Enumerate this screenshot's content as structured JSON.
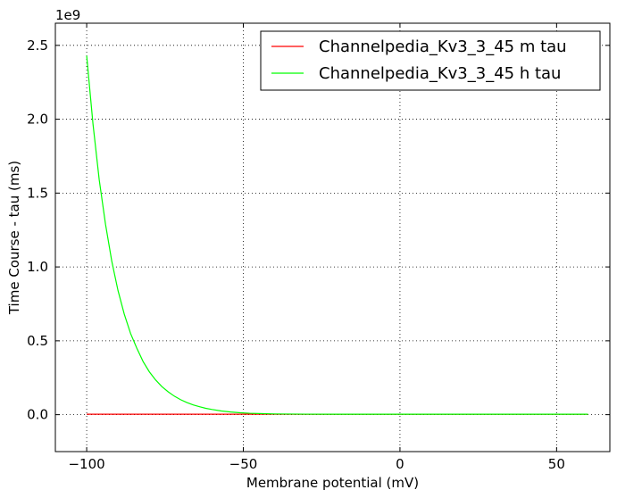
{
  "chart_data": {
    "type": "line",
    "xlabel": "Membrane potential (mV)",
    "ylabel": "Time Course - tau (ms)",
    "y_offset_label": "1e9",
    "xlim": [
      -110,
      67
    ],
    "ylim": [
      -0.25,
      2.65
    ],
    "y_scale_factor": 1000000000,
    "xticks": [
      -100,
      -50,
      0,
      50
    ],
    "xtick_labels": [
      "−100",
      "−50",
      "0",
      "50"
    ],
    "yticks": [
      0.0,
      0.5,
      1.0,
      1.5,
      2.0,
      2.5
    ],
    "ytick_labels": [
      "0.0",
      "0.5",
      "1.0",
      "1.5",
      "2.0",
      "2.5"
    ],
    "grid": true,
    "legend_position": "top-right",
    "series": [
      {
        "name": "Channelpedia_Kv3_3_45 m tau",
        "color": "#ff0000",
        "x": [
          -100,
          -90,
          -80,
          -70,
          -60,
          -50,
          -40,
          -30,
          -20,
          -10,
          0,
          10,
          20,
          30,
          40,
          50,
          60
        ],
        "y": [
          0.003,
          0.003,
          0.003,
          0.003,
          0.003,
          0.003,
          0.003,
          0.003,
          0.003,
          0.003,
          0.003,
          0.003,
          0.003,
          0.003,
          0.003,
          0.003,
          0.003
        ]
      },
      {
        "name": "Channelpedia_Kv3_3_45 h tau",
        "color": "#00ff00",
        "x": [
          -100,
          -98,
          -96,
          -94,
          -92,
          -90,
          -88,
          -86,
          -84,
          -82,
          -80,
          -78,
          -76,
          -74,
          -72,
          -70,
          -68,
          -66,
          -64,
          -62,
          -60,
          -57,
          -54,
          -51,
          -48,
          -45,
          -40,
          -35,
          -30,
          -20,
          -10,
          0,
          10,
          20,
          30,
          40,
          50,
          60
        ],
        "y": [
          2.43,
          1.97,
          1.59,
          1.29,
          1.04,
          0.84,
          0.68,
          0.55,
          0.45,
          0.36,
          0.29,
          0.235,
          0.19,
          0.155,
          0.125,
          0.101,
          0.082,
          0.066,
          0.054,
          0.043,
          0.035,
          0.025,
          0.018,
          0.013,
          0.0095,
          0.0075,
          0.005,
          0.004,
          0.0035,
          0.003,
          0.003,
          0.003,
          0.003,
          0.003,
          0.003,
          0.003,
          0.003,
          0.003
        ]
      }
    ]
  }
}
